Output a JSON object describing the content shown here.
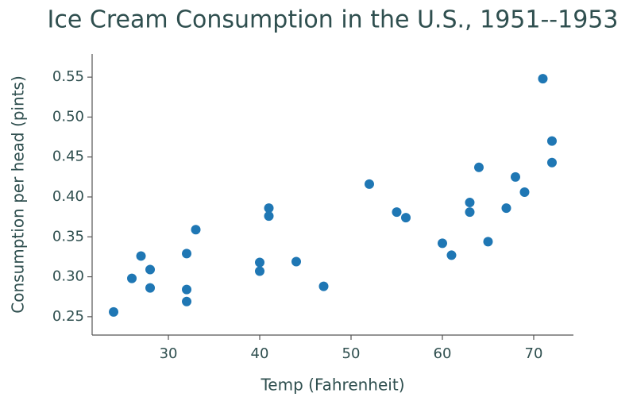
{
  "chart_data": {
    "type": "scatter",
    "title": "Ice Cream Consumption in the U.S., 1951--1953",
    "x_label": "Temp (Fahrenheit)",
    "y_label": "Consumption per head (pints)",
    "color": "#1f77b4",
    "x": [
      24,
      26,
      27,
      28,
      28,
      32,
      32,
      32,
      33,
      40,
      40,
      41,
      41,
      44,
      47,
      52,
      55,
      56,
      60,
      61,
      63,
      63,
      64,
      65,
      67,
      68,
      69,
      71,
      72,
      72
    ],
    "values": [
      0.256,
      0.298,
      0.326,
      0.309,
      0.286,
      0.329,
      0.284,
      0.269,
      0.359,
      0.318,
      0.307,
      0.386,
      0.376,
      0.319,
      0.288,
      0.416,
      0.381,
      0.374,
      0.342,
      0.327,
      0.393,
      0.381,
      0.437,
      0.344,
      0.386,
      0.425,
      0.406,
      0.548,
      0.47,
      0.443
    ],
    "xlim": [
      21.65,
      74.35
    ],
    "ylim": [
      0.227,
      0.579
    ],
    "xticks": [
      30,
      40,
      50,
      60,
      70
    ],
    "yticks": [
      0.25,
      {
        "value": 0.3,
        "label": "0.30"
      },
      0.35,
      {
        "value": 0.4,
        "label": "0.40"
      },
      0.45,
      {
        "value": 0.5,
        "label": "0.50"
      },
      0.55
    ]
  }
}
